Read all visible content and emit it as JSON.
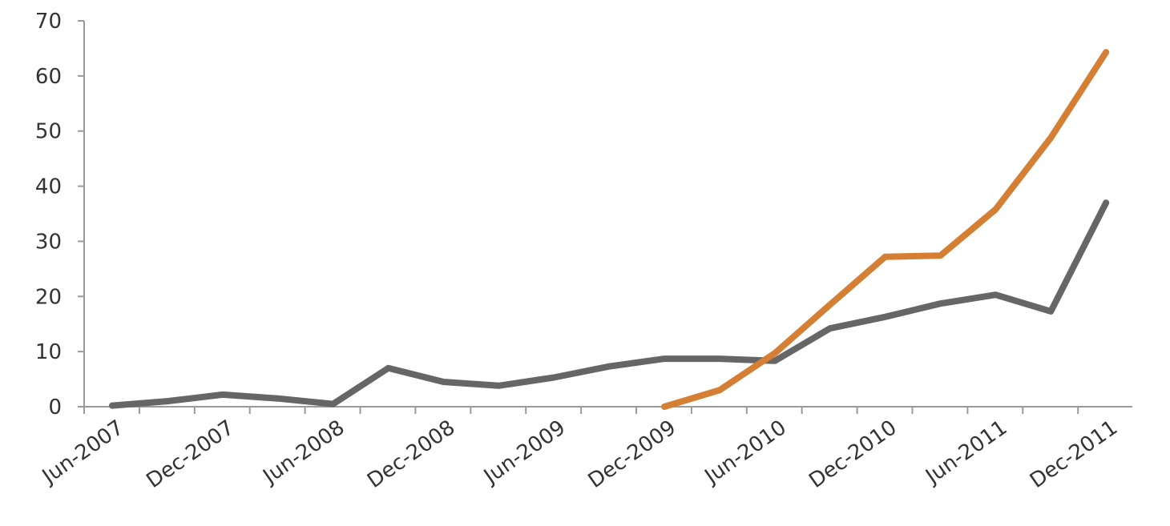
{
  "chart_data": {
    "type": "line",
    "title": "",
    "xlabel": "",
    "ylabel": "",
    "ylim": [
      0,
      70
    ],
    "yticks": [
      0,
      10,
      20,
      30,
      40,
      50,
      60,
      70
    ],
    "y_tick_labels": [
      "0",
      "10",
      "20",
      "30",
      "40",
      "50",
      "60",
      "70"
    ],
    "x": [
      "Jun-2007",
      "Sep-2007",
      "Dec-2007",
      "Mar-2008",
      "Jun-2008",
      "Sep-2008",
      "Dec-2008",
      "Mar-2009",
      "Jun-2009",
      "Sep-2009",
      "Dec-2009",
      "Mar-2010",
      "Jun-2010",
      "Sep-2010",
      "Dec-2010",
      "Mar-2011",
      "Jun-2011",
      "Sep-2011",
      "Dec-2011"
    ],
    "x_tick_labels": [
      "Jun-2007",
      "Dec-2007",
      "Jun-2008",
      "Dec-2008",
      "Jun-2009",
      "Dec-2009",
      "Jun-2010",
      "Dec-2010",
      "Jun-2011",
      "Dec-2011"
    ],
    "grid": false,
    "legend": "none",
    "series": [
      {
        "color": "#666666",
        "values": [
          0.2,
          1.0,
          2.2,
          1.5,
          0.5,
          7.0,
          4.5,
          3.8,
          5.3,
          7.3,
          8.7,
          8.7,
          8.3,
          14.2,
          16.3,
          18.7,
          20.3,
          17.3,
          37.0
        ]
      },
      {
        "color": "#d57f35",
        "values": [
          null,
          null,
          null,
          null,
          null,
          null,
          null,
          null,
          null,
          null,
          0.0,
          3.0,
          9.7,
          18.5,
          27.2,
          27.4,
          35.8,
          48.8,
          64.3
        ]
      }
    ]
  }
}
